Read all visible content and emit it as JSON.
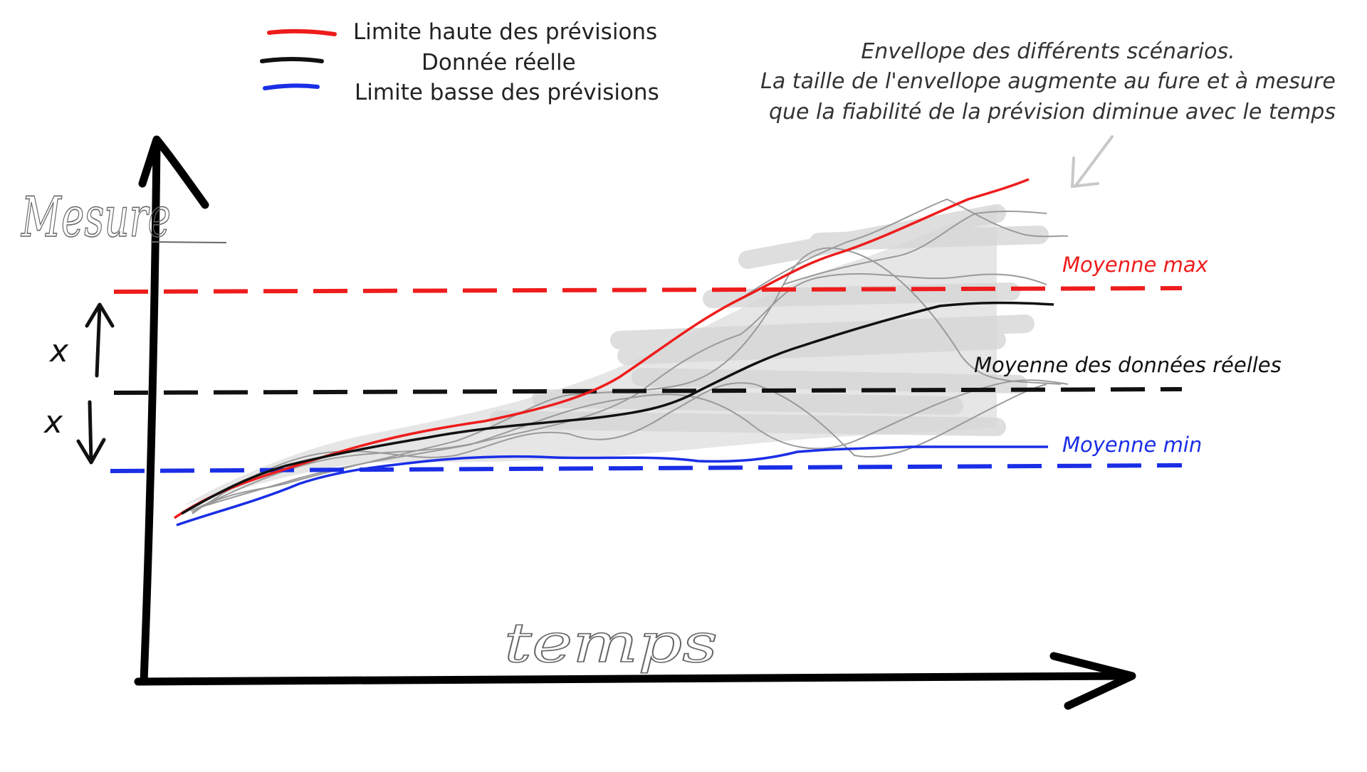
{
  "legend": {
    "items": [
      {
        "label": "Limite haute des prévisions",
        "color": "#ee1c1c"
      },
      {
        "label": "Donnée réelle",
        "color": "#111111"
      },
      {
        "label": "Limite basse des prévisions",
        "color": "#1a2ee6"
      }
    ]
  },
  "annotation": {
    "lines": [
      "Envellope des différents scénarios.",
      "La taille de l'envellope augmente au fure et à mesure",
      "que la fiabilité de la prévision diminue avec le temps"
    ]
  },
  "axes": {
    "y_label": "Mesure",
    "x_label": "temps"
  },
  "averages": {
    "max_label": "Moyenne max",
    "real_label": "Moyenne des données réelles",
    "min_label": "Moyenne min"
  },
  "deviation": {
    "upper_symbol": "x",
    "lower_symbol": "x"
  },
  "colors": {
    "high": "#ee1c1c",
    "real": "#111111",
    "low": "#1a2ee6",
    "envelope": "#d9d9d9",
    "scenario": "#9a9a9a"
  }
}
